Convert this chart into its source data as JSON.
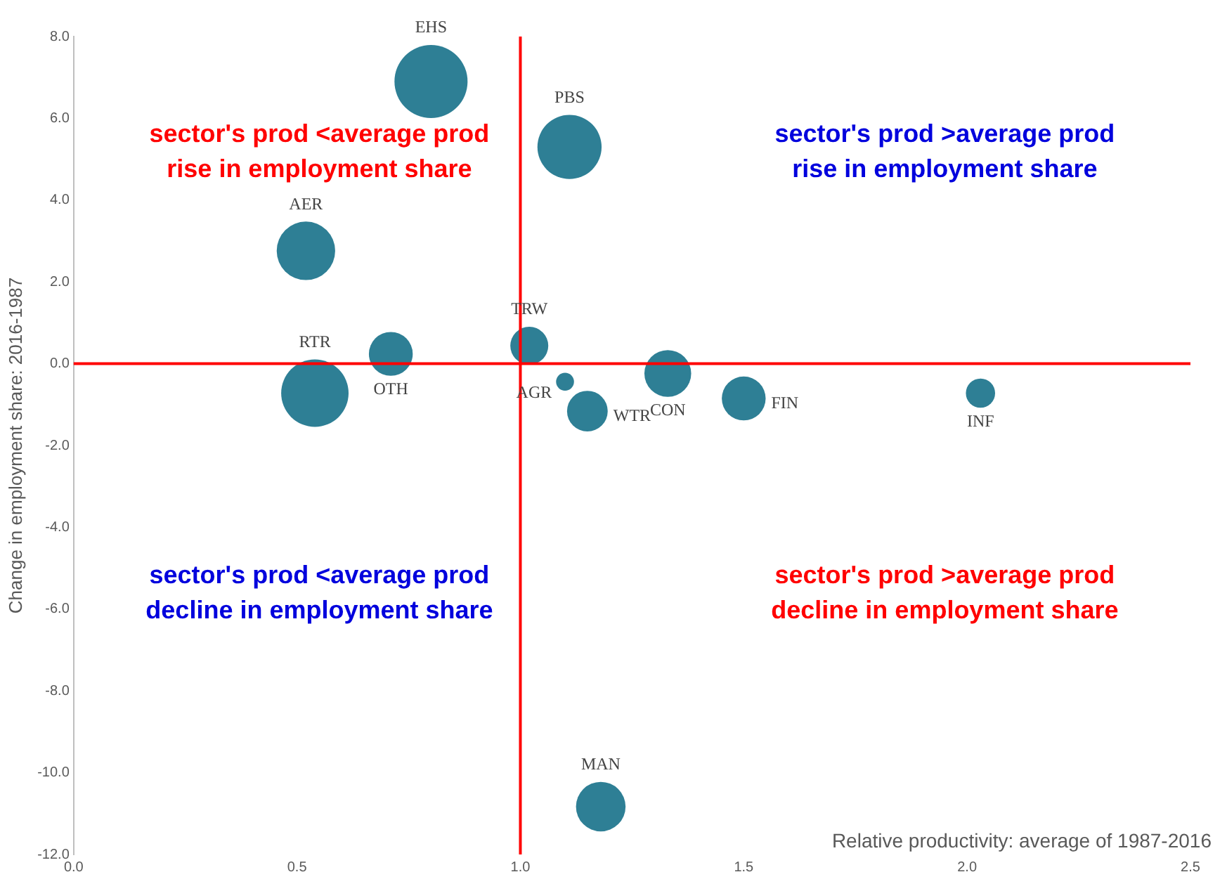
{
  "chart_data": {
    "type": "bubble",
    "xlabel": "Relative productivity: average of 1987-2016",
    "ylabel": "Change in employment share: 2016-1987",
    "series": [
      {
        "name": "EHS",
        "color": "#2e7f95",
        "x": [
          0.8
        ],
        "values": [
          6.9
        ],
        "sizes": [
          1
        ]
      },
      {
        "name": "PBS",
        "color": "#2e7f95",
        "x": [
          1.11
        ],
        "values": [
          5.3
        ],
        "sizes": [
          0.77
        ]
      },
      {
        "name": "AER",
        "color": "#2e7f95",
        "x": [
          0.52
        ],
        "values": [
          2.76
        ],
        "sizes": [
          0.64
        ]
      },
      {
        "name": "RTR",
        "color": "#2e7f95",
        "x": [
          0.54
        ],
        "values": [
          -0.72
        ],
        "sizes": [
          0.85
        ]
      },
      {
        "name": "OTH",
        "color": "#2e7f95",
        "x": [
          0.71
        ],
        "values": [
          0.24
        ],
        "sizes": [
          0.36
        ]
      },
      {
        "name": "TRW",
        "color": "#2e7f95",
        "x": [
          1.02
        ],
        "values": [
          0.44
        ],
        "sizes": [
          0.27
        ]
      },
      {
        "name": "AGR",
        "color": "#2e7f95",
        "x": [
          1.1
        ],
        "values": [
          -0.44
        ],
        "sizes": [
          0.06
        ]
      },
      {
        "name": "WTR",
        "color": "#2e7f95",
        "x": [
          1.15
        ],
        "values": [
          -1.16
        ],
        "sizes": [
          0.31
        ]
      },
      {
        "name": "CON",
        "color": "#2e7f95",
        "x": [
          1.33
        ],
        "values": [
          -0.24
        ],
        "sizes": [
          0.41
        ]
      },
      {
        "name": "FIN",
        "color": "#2e7f95",
        "x": [
          1.5
        ],
        "values": [
          -0.85
        ],
        "sizes": [
          0.36
        ]
      },
      {
        "name": "INF",
        "color": "#2e7f95",
        "x": [
          2.03
        ],
        "values": [
          -0.72
        ],
        "sizes": [
          0.16
        ]
      },
      {
        "name": "MAN",
        "color": "#2e7f95",
        "x": [
          1.18
        ],
        "values": [
          -10.83
        ],
        "sizes": [
          0.46
        ]
      }
    ],
    "xlim": [
      0,
      2.5
    ],
    "xticks": [
      {
        "value": 0,
        "label": "0.0"
      },
      {
        "value": 0.5,
        "label": "0.5"
      },
      {
        "value": 1,
        "label": "1.0"
      },
      {
        "value": 1.5,
        "label": "1.5"
      },
      {
        "value": 2,
        "label": "2.0"
      },
      {
        "value": 2.5,
        "label": "2.5"
      }
    ],
    "ylim": [
      -12,
      8
    ],
    "yticks": [
      {
        "value": -12,
        "label": "-12.0"
      },
      {
        "value": -10,
        "label": "-10.0"
      },
      {
        "value": -8,
        "label": "-8.0"
      },
      {
        "value": -6,
        "label": "-6.0"
      },
      {
        "value": -4,
        "label": "-4.0"
      },
      {
        "value": -2,
        "label": "-2.0"
      },
      {
        "value": 0,
        "label": "0.0"
      },
      {
        "value": 2,
        "label": "2.0"
      },
      {
        "value": 4,
        "label": "4.0"
      },
      {
        "value": 6,
        "label": "6.0"
      },
      {
        "value": 8,
        "label": "8.0"
      }
    ],
    "ref_lines": [
      {
        "axis": "x",
        "value": 1,
        "color": "#ff0000"
      },
      {
        "axis": "y",
        "value": 0,
        "color": "#ff0000"
      }
    ],
    "annotations": [
      "sector's prod <average prod\nrise in employment share",
      "sector's prod >average prod\nrise in employment share",
      "sector's prod <average prod\ndecline in employment share",
      "sector's prod >average prod\ndecline in employment share"
    ],
    "grid": false,
    "legend": false
  }
}
